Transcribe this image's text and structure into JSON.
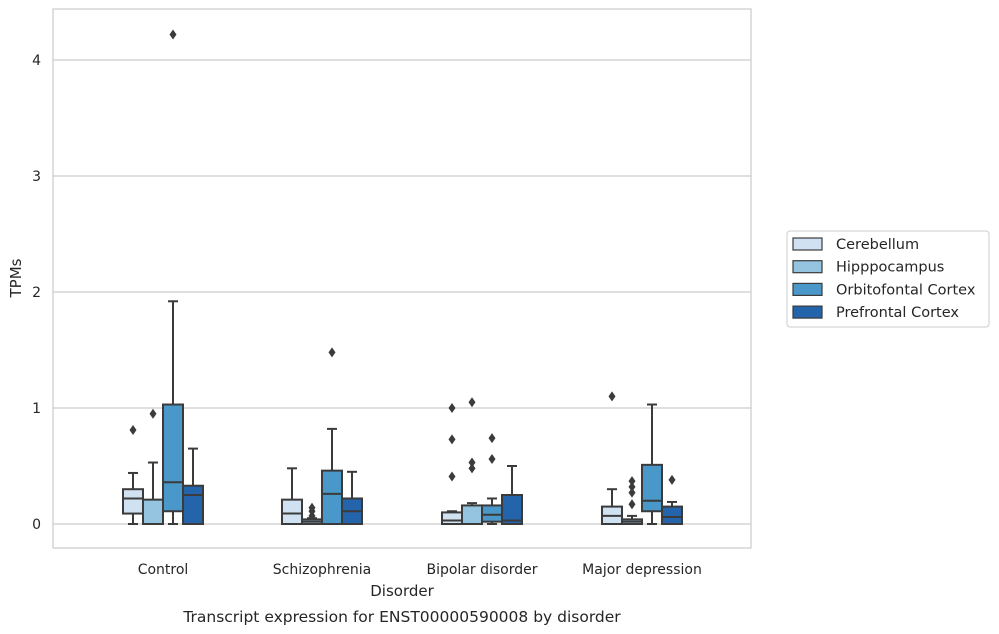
{
  "caption": "Transcript expression for ENST00000590008 by disorder",
  "chart_data": {
    "type": "box",
    "xlabel": "Disorder",
    "ylabel": "TPMs",
    "ylim": [
      -0.2,
      4.45
    ],
    "yticks": [
      0,
      1,
      2,
      3,
      4
    ],
    "grid": "horizontal",
    "legend_position": "right",
    "categories": [
      "Control",
      "Schizophrenia",
      "Bipolar disorder",
      "Major depression"
    ],
    "series": [
      {
        "name": "Cerebellum",
        "color": "#d0e1f2",
        "boxes": [
          {
            "whisker_low": 0.0,
            "q1": 0.09,
            "median": 0.22,
            "q3": 0.3,
            "whisker_high": 0.44,
            "outliers": [
              0.81
            ]
          },
          {
            "whisker_low": 0.0,
            "q1": 0.0,
            "median": 0.09,
            "q3": 0.21,
            "whisker_high": 0.48,
            "outliers": []
          },
          {
            "whisker_low": 0.0,
            "q1": 0.0,
            "median": 0.03,
            "q3": 0.1,
            "whisker_high": 0.11,
            "outliers": [
              0.41,
              0.73,
              1.0
            ]
          },
          {
            "whisker_low": 0.0,
            "q1": 0.0,
            "median": 0.07,
            "q3": 0.15,
            "whisker_high": 0.3,
            "outliers": [
              1.1
            ]
          }
        ]
      },
      {
        "name": "Hipppocampus",
        "color": "#94c4df",
        "boxes": [
          {
            "whisker_low": 0.0,
            "q1": 0.0,
            "median": 0.0,
            "q3": 0.21,
            "whisker_high": 0.53,
            "outliers": [
              0.95
            ]
          },
          {
            "whisker_low": 0.0,
            "q1": 0.0,
            "median": 0.02,
            "q3": 0.04,
            "whisker_high": 0.05,
            "outliers": [
              0.07,
              0.11,
              0.14
            ]
          },
          {
            "whisker_low": 0.0,
            "q1": 0.0,
            "median": 0.0,
            "q3": 0.16,
            "whisker_high": 0.18,
            "outliers": [
              0.48,
              0.53,
              1.05
            ]
          },
          {
            "whisker_low": 0.0,
            "q1": 0.0,
            "median": 0.02,
            "q3": 0.04,
            "whisker_high": 0.07,
            "outliers": [
              0.17,
              0.27,
              0.32,
              0.37
            ]
          }
        ]
      },
      {
        "name": "Orbitofontal Cortex",
        "color": "#4a98c9",
        "boxes": [
          {
            "whisker_low": 0.0,
            "q1": 0.11,
            "median": 0.36,
            "q3": 1.03,
            "whisker_high": 1.92,
            "outliers": [
              4.22
            ]
          },
          {
            "whisker_low": 0.0,
            "q1": 0.0,
            "median": 0.26,
            "q3": 0.46,
            "whisker_high": 0.82,
            "outliers": [
              1.48
            ]
          },
          {
            "whisker_low": 0.0,
            "q1": 0.02,
            "median": 0.08,
            "q3": 0.16,
            "whisker_high": 0.22,
            "outliers": [
              0.56,
              0.74
            ]
          },
          {
            "whisker_low": 0.0,
            "q1": 0.11,
            "median": 0.2,
            "q3": 0.51,
            "whisker_high": 1.03,
            "outliers": []
          }
        ]
      },
      {
        "name": "Prefrontal Cortex",
        "color": "#2464ab",
        "boxes": [
          {
            "whisker_low": 0.0,
            "q1": 0.0,
            "median": 0.25,
            "q3": 0.33,
            "whisker_high": 0.65,
            "outliers": []
          },
          {
            "whisker_low": 0.0,
            "q1": 0.0,
            "median": 0.11,
            "q3": 0.22,
            "whisker_high": 0.45,
            "outliers": []
          },
          {
            "whisker_low": 0.0,
            "q1": 0.0,
            "median": 0.03,
            "q3": 0.25,
            "whisker_high": 0.5,
            "outliers": []
          },
          {
            "whisker_low": 0.0,
            "q1": 0.0,
            "median": 0.06,
            "q3": 0.15,
            "whisker_high": 0.19,
            "outliers": [
              0.38
            ]
          }
        ]
      }
    ]
  }
}
